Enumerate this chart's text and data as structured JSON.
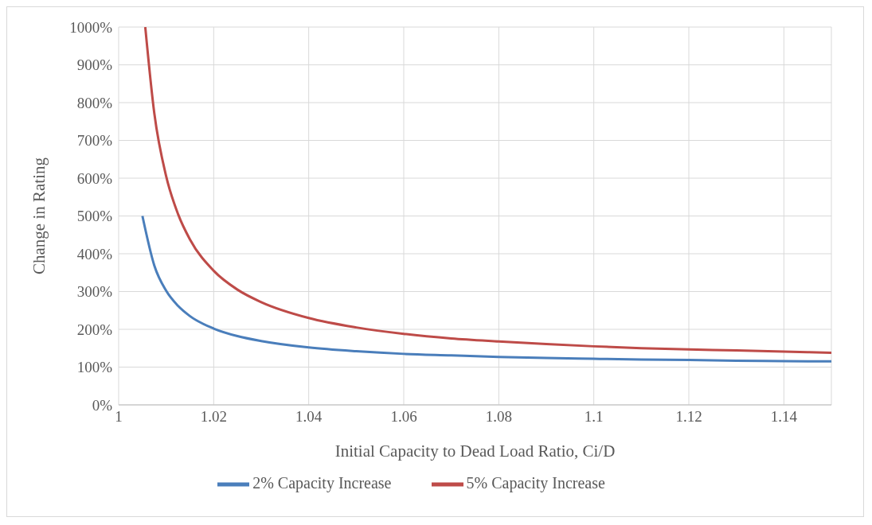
{
  "chart_data": {
    "type": "line",
    "xlabel": "Initial Capacity to Dead Load Ratio, Ci/D",
    "ylabel": "Change in Rating",
    "xlim": [
      1,
      1.15
    ],
    "xticks": [
      1,
      1.02,
      1.04,
      1.06,
      1.08,
      1.1,
      1.12,
      1.14
    ],
    "ylim": [
      0,
      1000
    ],
    "yticks": [
      {
        "value": 0,
        "label": "0%"
      },
      {
        "value": 100,
        "label": "100%"
      },
      {
        "value": 200,
        "label": "200%"
      },
      {
        "value": 300,
        "label": "300%"
      },
      {
        "value": 400,
        "label": "400%"
      },
      {
        "value": 500,
        "label": "500%"
      },
      {
        "value": 600,
        "label": "600%"
      },
      {
        "value": 700,
        "label": "700%"
      },
      {
        "value": 800,
        "label": "800%"
      },
      {
        "value": 900,
        "label": "900%"
      },
      {
        "value": 1000,
        "label": "1000%"
      }
    ],
    "grid": true,
    "legend": "bottom",
    "marker": "none",
    "line_style": "solid",
    "series": [
      {
        "name": "2% Capacity Increase",
        "color": "#4a7ebb",
        "x": [
          1.005,
          1.0075,
          1.01,
          1.0125,
          1.015,
          1.02,
          1.025,
          1.03,
          1.04,
          1.05,
          1.06,
          1.07,
          1.08,
          1.09,
          1.1,
          1.11,
          1.12,
          1.13,
          1.14,
          1.15
        ],
        "values": [
          500,
          369,
          302,
          262,
          235,
          202,
          182,
          169,
          152,
          142,
          135,
          131,
          127,
          124,
          122,
          120,
          119,
          117,
          116,
          115
        ]
      },
      {
        "name": "5% Capacity Increase",
        "color": "#be4b48",
        "x": [
          1.0056,
          1.0075,
          1.01,
          1.0125,
          1.015,
          1.02,
          1.025,
          1.03,
          1.04,
          1.05,
          1.06,
          1.07,
          1.08,
          1.09,
          1.1,
          1.11,
          1.12,
          1.13,
          1.14,
          1.15
        ],
        "values": [
          1000,
          772,
          605,
          505,
          438,
          355,
          305,
          272,
          230,
          205,
          188,
          176,
          168,
          161,
          155,
          150,
          147,
          144,
          141,
          138
        ]
      }
    ]
  }
}
